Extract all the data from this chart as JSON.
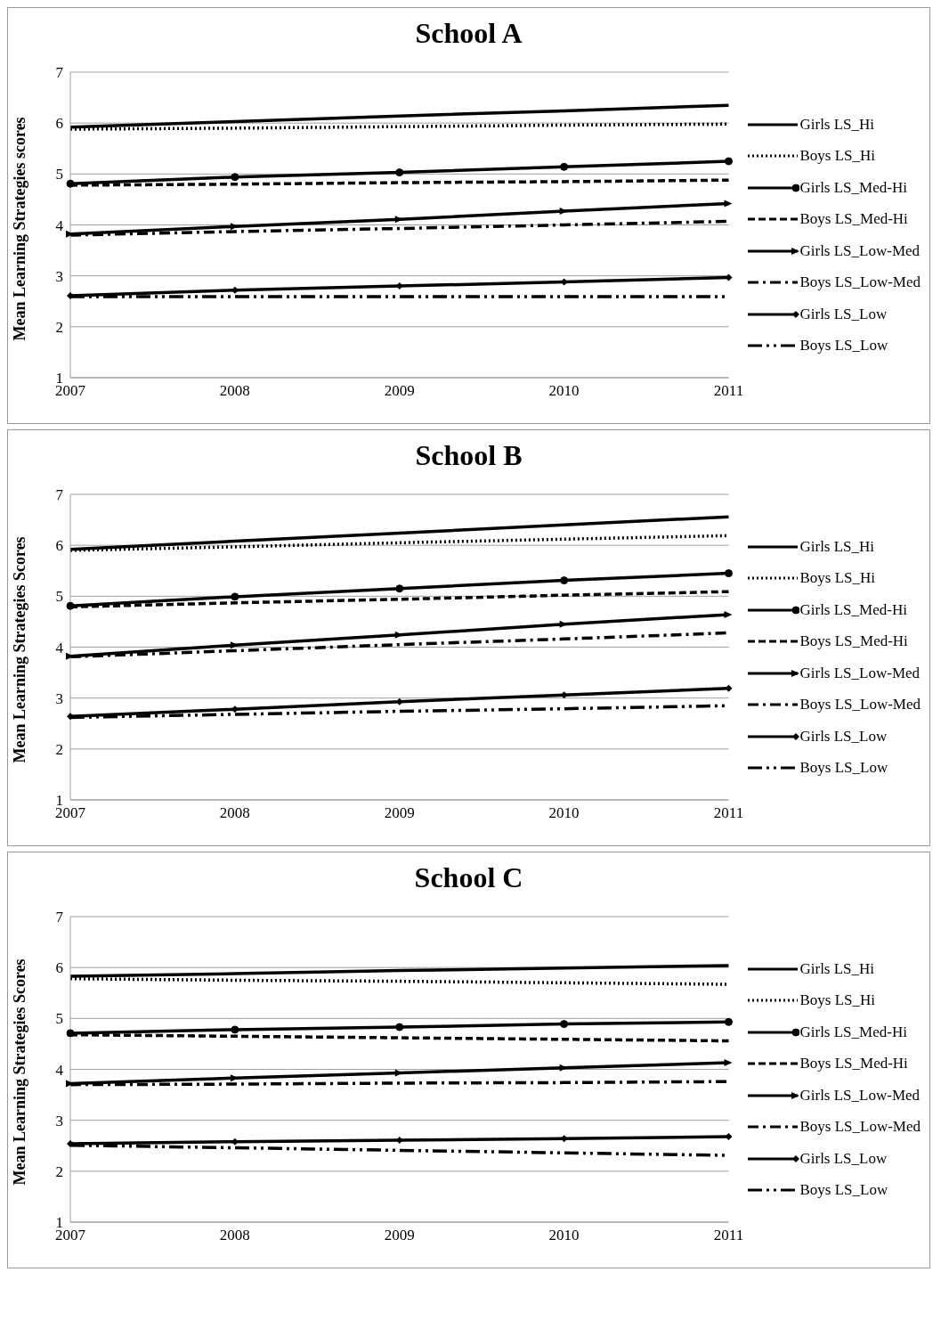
{
  "chart_data": [
    {
      "type": "line",
      "title": "School A",
      "ylabel": "Mean Learning Strategies scores",
      "categories": [
        "2007",
        "2008",
        "2009",
        "2010",
        "2011"
      ],
      "ylim": [
        1,
        7
      ],
      "yticks": [
        1,
        2,
        3,
        4,
        5,
        6,
        7
      ],
      "grid": "y",
      "legend": "right",
      "series": [
        {
          "name": "Girls LS_Hi",
          "color": "#000000",
          "line_style": "solid",
          "marker": "none",
          "values": [
            5.92,
            6.03,
            6.14,
            6.24,
            6.35
          ]
        },
        {
          "name": "Boys LS_Hi",
          "color": "#000000",
          "line_style": "dotted",
          "marker": "none",
          "values": [
            5.88,
            5.9,
            5.93,
            5.96,
            5.98
          ]
        },
        {
          "name": "Girls LS_Med-Hi",
          "color": "#000000",
          "line_style": "solid",
          "marker": "circle",
          "values": [
            4.81,
            4.94,
            5.03,
            5.14,
            5.25
          ]
        },
        {
          "name": "Boys LS_Med-Hi",
          "color": "#000000",
          "line_style": "dashed",
          "marker": "none",
          "values": [
            4.78,
            4.8,
            4.83,
            4.85,
            4.88
          ]
        },
        {
          "name": "Girls LS_Low-Med",
          "color": "#000000",
          "line_style": "solid",
          "marker": "triangle",
          "values": [
            3.82,
            3.97,
            4.11,
            4.27,
            4.42
          ]
        },
        {
          "name": "Boys LS_Low-Med",
          "color": "#000000",
          "line_style": "dashed",
          "marker": "none",
          "values": [
            3.8,
            3.87,
            3.93,
            4.0,
            4.07
          ]
        },
        {
          "name": "Girls LS_Low",
          "color": "#000000",
          "line_style": "solid",
          "marker": "diamond",
          "values": [
            2.61,
            2.72,
            2.8,
            2.88,
            2.97
          ]
        },
        {
          "name": "Boys LS_Low",
          "color": "#000000",
          "line_style": "dashed",
          "marker": "none",
          "values": [
            2.59,
            2.59,
            2.59,
            2.59,
            2.59
          ]
        }
      ]
    },
    {
      "type": "line",
      "title": "School B",
      "ylabel": "Mean Learning Strategies Scores",
      "categories": [
        "2007",
        "2008",
        "2009",
        "2010",
        "2011"
      ],
      "ylim": [
        1,
        7
      ],
      "yticks": [
        1,
        2,
        3,
        4,
        5,
        6,
        7
      ],
      "grid": "y",
      "legend": "right",
      "series": [
        {
          "name": "Girls LS_Hi",
          "color": "#000000",
          "line_style": "solid",
          "marker": "none",
          "values": [
            5.92,
            6.08,
            6.24,
            6.4,
            6.56
          ]
        },
        {
          "name": "Boys LS_Hi",
          "color": "#000000",
          "line_style": "dotted",
          "marker": "none",
          "values": [
            5.9,
            5.97,
            6.05,
            6.12,
            6.19
          ]
        },
        {
          "name": "Girls LS_Med-Hi",
          "color": "#000000",
          "line_style": "solid",
          "marker": "circle",
          "values": [
            4.81,
            4.99,
            5.15,
            5.31,
            5.45
          ]
        },
        {
          "name": "Boys LS_Med-Hi",
          "color": "#000000",
          "line_style": "dashed",
          "marker": "none",
          "values": [
            4.79,
            4.87,
            4.94,
            5.02,
            5.09
          ]
        },
        {
          "name": "Girls LS_Low-Med",
          "color": "#000000",
          "line_style": "solid",
          "marker": "triangle",
          "values": [
            3.82,
            4.04,
            4.24,
            4.45,
            4.64
          ]
        },
        {
          "name": "Boys LS_Low-Med",
          "color": "#000000",
          "line_style": "dashed",
          "marker": "none",
          "values": [
            3.81,
            3.93,
            4.05,
            4.16,
            4.28
          ]
        },
        {
          "name": "Girls LS_Low",
          "color": "#000000",
          "line_style": "solid",
          "marker": "diamond",
          "values": [
            2.64,
            2.78,
            2.93,
            3.06,
            3.19
          ]
        },
        {
          "name": "Boys LS_Low",
          "color": "#000000",
          "line_style": "dashed",
          "marker": "none",
          "values": [
            2.62,
            2.68,
            2.74,
            2.79,
            2.85
          ]
        }
      ]
    },
    {
      "type": "line",
      "title": "School C",
      "ylabel": "Mean Learning Strategies Scores",
      "categories": [
        "2007",
        "2008",
        "2009",
        "2010",
        "2011"
      ],
      "ylim": [
        1,
        7
      ],
      "yticks": [
        1,
        2,
        3,
        4,
        5,
        6,
        7
      ],
      "grid": "y",
      "legend": "right",
      "series": [
        {
          "name": "Girls LS_Hi",
          "color": "#000000",
          "line_style": "solid",
          "marker": "none",
          "values": [
            5.83,
            5.88,
            5.94,
            5.99,
            6.04
          ]
        },
        {
          "name": "Boys LS_Hi",
          "color": "#000000",
          "line_style": "dotted",
          "marker": "none",
          "values": [
            5.78,
            5.75,
            5.73,
            5.7,
            5.67
          ]
        },
        {
          "name": "Girls LS_Med-Hi",
          "color": "#000000",
          "line_style": "solid",
          "marker": "circle",
          "values": [
            4.71,
            4.78,
            4.83,
            4.89,
            4.93
          ]
        },
        {
          "name": "Boys LS_Med-Hi",
          "color": "#000000",
          "line_style": "dashed",
          "marker": "none",
          "values": [
            4.68,
            4.65,
            4.62,
            4.59,
            4.56
          ]
        },
        {
          "name": "Girls LS_Low-Med",
          "color": "#000000",
          "line_style": "solid",
          "marker": "triangle",
          "values": [
            3.72,
            3.83,
            3.93,
            4.03,
            4.13
          ]
        },
        {
          "name": "Boys LS_Low-Med",
          "color": "#000000",
          "line_style": "dashed",
          "marker": "none",
          "values": [
            3.7,
            3.71,
            3.73,
            3.74,
            3.76
          ]
        },
        {
          "name": "Girls LS_Low",
          "color": "#000000",
          "line_style": "solid",
          "marker": "diamond",
          "values": [
            2.54,
            2.58,
            2.61,
            2.64,
            2.68
          ]
        },
        {
          "name": "Boys LS_Low",
          "color": "#000000",
          "line_style": "dashed",
          "marker": "none",
          "values": [
            2.51,
            2.46,
            2.41,
            2.36,
            2.31
          ]
        }
      ]
    }
  ]
}
